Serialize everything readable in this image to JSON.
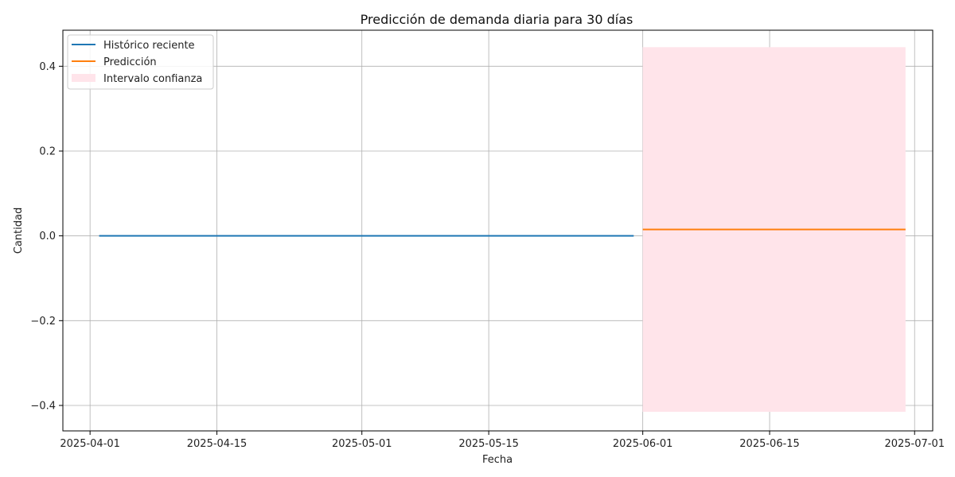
{
  "chart_data": {
    "type": "line",
    "title": "Predicción de demanda diaria para 30 días",
    "xlabel": "Fecha",
    "ylabel": "Cantidad",
    "xlim": [
      "2025-03-29",
      "2025-07-03"
    ],
    "ylim": [
      -0.46,
      0.485
    ],
    "x_ticks": [
      "2025-04-01",
      "2025-04-15",
      "2025-05-01",
      "2025-05-15",
      "2025-06-01",
      "2025-06-15",
      "2025-07-01"
    ],
    "y_ticks": [
      {
        "value": -0.4,
        "label": "−0.4"
      },
      {
        "value": -0.2,
        "label": "−0.2"
      },
      {
        "value": 0.0,
        "label": "0.0"
      },
      {
        "value": 0.2,
        "label": "0.2"
      },
      {
        "value": 0.4,
        "label": "0.4"
      }
    ],
    "grid": true,
    "legend_position": "top-left",
    "series": [
      {
        "name": "Histórico reciente",
        "color": "#1f77b4",
        "x": [
          "2025-04-02",
          "2025-05-31"
        ],
        "y": [
          0.0,
          0.0
        ]
      },
      {
        "name": "Predicción",
        "color": "#ff7f0e",
        "x": [
          "2025-06-01",
          "2025-06-30"
        ],
        "y": [
          0.015,
          0.015
        ]
      }
    ],
    "band": {
      "name": "Intervalo confianza",
      "color": "#ffe4ea",
      "x": [
        "2025-06-01",
        "2025-06-30"
      ],
      "lower": -0.415,
      "upper": 0.445
    }
  }
}
